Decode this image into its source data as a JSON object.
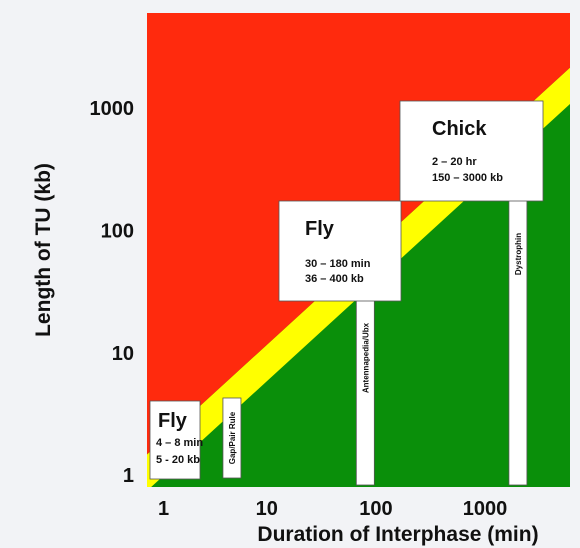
{
  "chart_data": {
    "type": "scatter",
    "xlabel": "Duration of Interphase (min)",
    "ylabel": "Length of TU (kb)",
    "xscale": "log",
    "yscale": "log",
    "xlim": [
      0.8,
      6000
    ],
    "ylim": [
      0.8,
      6000
    ],
    "x_ticks": [
      {
        "value": 1,
        "label": "1"
      },
      {
        "value": 10,
        "label": "10"
      },
      {
        "value": 100,
        "label": "100"
      },
      {
        "value": 1000,
        "label": "1000"
      }
    ],
    "y_ticks": [
      {
        "value": 1,
        "label": "1"
      },
      {
        "value": 10,
        "label": "10"
      },
      {
        "value": 100,
        "label": "100"
      },
      {
        "value": 1000,
        "label": "1000"
      }
    ],
    "regions": {
      "upper": {
        "color": "#ff2a0d"
      },
      "boundary": {
        "color": "#ffff00"
      },
      "lower": {
        "color": "#0a8f0a"
      }
    },
    "boxes": [
      {
        "title": "Fly",
        "lines": [
          "4 – 8 min",
          "5 - 20 kb"
        ]
      },
      {
        "title": "Fly",
        "lines": [
          "30 – 180 min",
          "36 – 400 kb"
        ]
      },
      {
        "title": "Chick",
        "lines": [
          "2   –  20 hr",
          "150 – 3000 kb"
        ]
      }
    ],
    "bars": [
      {
        "label": "Gap/Pair Rule",
        "x": 4.8,
        "y": 6.5
      },
      {
        "label": "Antennapedia/Ubx",
        "x": 80,
        "y": 65
      },
      {
        "label": "Dystrophin",
        "x": 2000,
        "y": 550
      }
    ]
  }
}
